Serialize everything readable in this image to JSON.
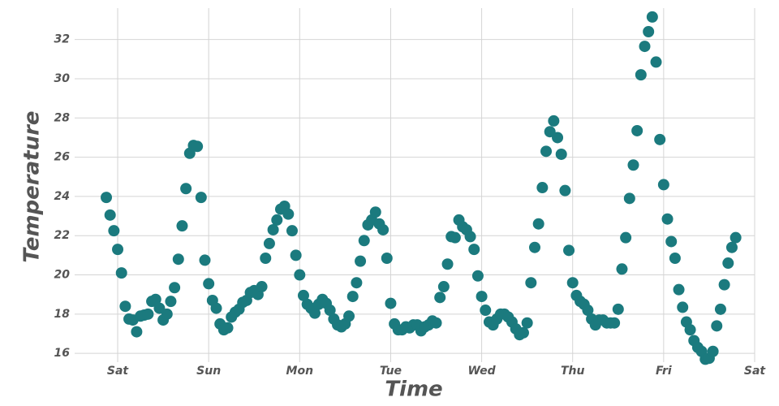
{
  "chart_data": {
    "type": "scatter",
    "x_label": "Time",
    "y_label": "Temperature",
    "color": "#1b7a7e",
    "grid": true,
    "xlim": [
      -11.35,
      168
    ],
    "ylim": [
      15.8,
      33.6
    ],
    "xticks": [
      {
        "value": 0,
        "label": "Sat"
      },
      {
        "value": 24,
        "label": "Sun"
      },
      {
        "value": 48,
        "label": "Mon"
      },
      {
        "value": 72,
        "label": "Tue"
      },
      {
        "value": 96,
        "label": "Wed"
      },
      {
        "value": 120,
        "label": "Thu"
      },
      {
        "value": 144,
        "label": "Fri"
      },
      {
        "value": 168,
        "label": "Sat"
      }
    ],
    "yticks": [
      16,
      18,
      20,
      22,
      24,
      26,
      28,
      30,
      32
    ],
    "x": [
      -3,
      -2,
      -1,
      0,
      1,
      2,
      3,
      4,
      5,
      6,
      7,
      8,
      9,
      10,
      11,
      12,
      13,
      14,
      15,
      16,
      17,
      18,
      19,
      20,
      21,
      22,
      23,
      24,
      25,
      26,
      27,
      28,
      29,
      30,
      31,
      32,
      33,
      34,
      35,
      36,
      37,
      38,
      39,
      40,
      41,
      42,
      43,
      44,
      45,
      46,
      47,
      48,
      49,
      50,
      51,
      52,
      53,
      54,
      55,
      56,
      57,
      58,
      59,
      60,
      61,
      62,
      63,
      64,
      65,
      66,
      67,
      68,
      69,
      70,
      71,
      72,
      73,
      74,
      75,
      76,
      77,
      78,
      79,
      80,
      81,
      82,
      83,
      84,
      85,
      86,
      87,
      88,
      89,
      90,
      91,
      92,
      93,
      94,
      95,
      96,
      97,
      98,
      99,
      100,
      101,
      102,
      103,
      104,
      105,
      106,
      107,
      108,
      109,
      110,
      111,
      112,
      113,
      114,
      115,
      116,
      117,
      118,
      119,
      120,
      121,
      122,
      123,
      124,
      125,
      126,
      127,
      128,
      129,
      130,
      131,
      132,
      133,
      134,
      135,
      136,
      137,
      138,
      139,
      140,
      141,
      142,
      143,
      144,
      145,
      146,
      147,
      148,
      149,
      150,
      151,
      152,
      153,
      154,
      155,
      156,
      157,
      158,
      159,
      160,
      161,
      162,
      163
    ],
    "values": [
      23.95,
      23.05,
      22.25,
      21.3,
      20.1,
      18.4,
      17.75,
      17.7,
      17.1,
      17.9,
      17.95,
      18.0,
      18.65,
      18.75,
      18.3,
      17.7,
      18.0,
      18.65,
      19.35,
      20.8,
      22.5,
      24.4,
      26.2,
      26.6,
      26.55,
      23.95,
      20.75,
      19.55,
      18.7,
      18.3,
      17.5,
      17.2,
      17.3,
      17.85,
      18.1,
      18.25,
      18.6,
      18.7,
      19.1,
      19.2,
      19.0,
      19.4,
      20.85,
      21.6,
      22.3,
      22.8,
      23.35,
      23.5,
      23.1,
      22.25,
      21.0,
      20.0,
      18.95,
      18.5,
      18.3,
      18.05,
      18.5,
      18.75,
      18.55,
      18.2,
      17.75,
      17.45,
      17.35,
      17.5,
      17.9,
      18.9,
      19.6,
      20.7,
      21.75,
      22.55,
      22.8,
      23.2,
      22.6,
      22.3,
      20.85,
      18.55,
      17.5,
      17.2,
      17.2,
      17.35,
      17.3,
      17.45,
      17.45,
      17.15,
      17.35,
      17.45,
      17.65,
      17.55,
      18.85,
      19.4,
      20.55,
      21.95,
      21.9,
      22.8,
      22.45,
      22.3,
      21.95,
      21.3,
      19.95,
      18.9,
      18.2,
      17.6,
      17.45,
      17.75,
      18.0,
      18.0,
      17.85,
      17.6,
      17.25,
      16.95,
      17.05,
      17.55,
      19.6,
      21.4,
      22.6,
      24.45,
      26.3,
      27.3,
      27.85,
      27.0,
      26.15,
      24.3,
      21.25,
      19.6,
      18.95,
      18.65,
      18.5,
      18.2,
      17.75,
      17.45,
      17.7,
      17.7,
      17.55,
      17.55,
      17.55,
      18.25,
      20.3,
      21.9,
      23.9,
      25.6,
      27.35,
      30.2,
      31.65,
      32.4,
      33.15,
      30.85,
      26.9,
      24.6,
      22.85,
      21.7,
      20.85,
      19.25,
      18.35,
      17.6,
      17.2,
      16.65,
      16.3,
      16.1,
      15.7,
      15.75,
      16.1,
      17.4,
      18.25,
      19.5,
      20.6,
      21.4,
      21.9
    ]
  }
}
